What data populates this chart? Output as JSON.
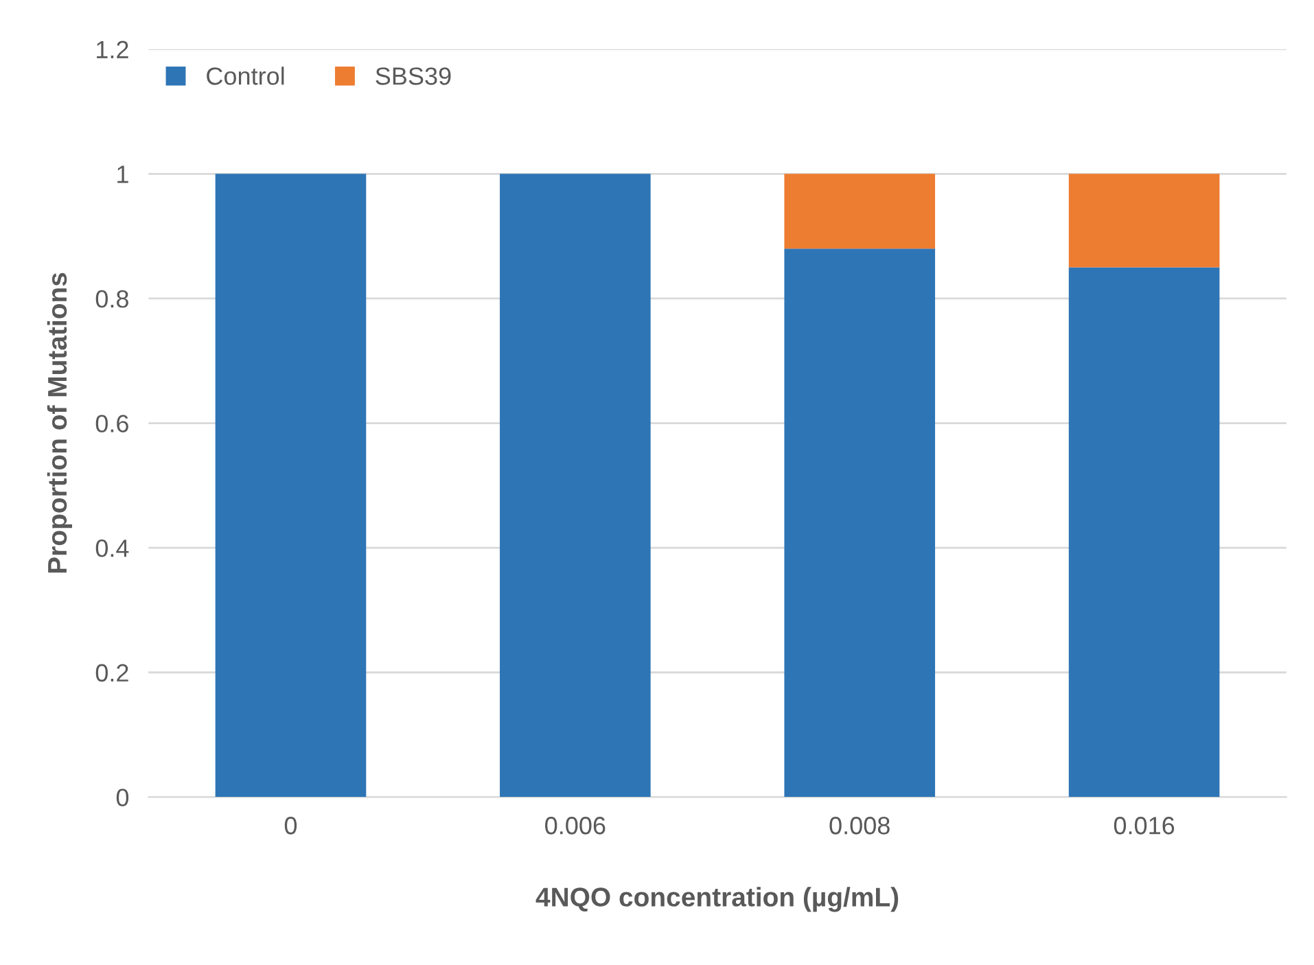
{
  "chart_data": {
    "type": "bar",
    "stacked": true,
    "xlabel": "4NQO concentration (µg/mL)",
    "ylabel": "Proportion of Mutations",
    "categories": [
      "0",
      "0.006",
      "0.008",
      "0.016"
    ],
    "series": [
      {
        "name": "Control",
        "color": "#2e75b6",
        "values": [
          1,
          1,
          0.88,
          0.85
        ]
      },
      {
        "name": "SBS39",
        "color": "#ed7d31",
        "values": [
          0,
          0,
          0.12,
          0.15
        ]
      }
    ],
    "ylim": [
      0,
      1.2
    ],
    "yticks": [
      0,
      0.2,
      0.4,
      0.6,
      0.8,
      1,
      1.2
    ],
    "grid": "y",
    "legend": "top left"
  }
}
